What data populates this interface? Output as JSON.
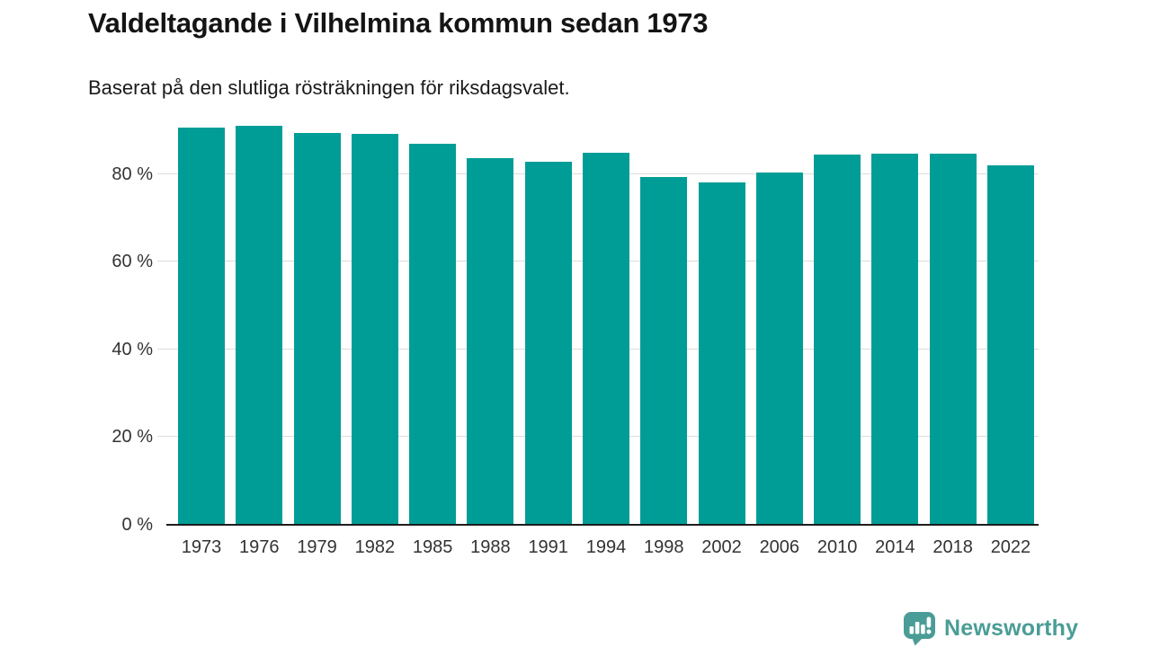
{
  "title": "Valdeltagande i Vilhelmina kommun sedan 1973",
  "subtitle": "Baserat på den slutliga rösträkningen för riksdagsvalet.",
  "branding": {
    "name": "Newsworthy",
    "icon": "newsworthy-speech-bubble-barchart-icon",
    "color": "#4a9d96"
  },
  "colors": {
    "bar": "#009d96",
    "gridline": "#dcdcdc",
    "axis_line": "#1d1d1d",
    "tick_label": "#333333",
    "title_text": "#141414"
  },
  "chart_data": {
    "type": "bar",
    "title": "Valdeltagande i Vilhelmina kommun sedan 1973",
    "subtitle": "Baserat på den slutliga rösträkningen för riksdagsvalet.",
    "categories": [
      "1973",
      "1976",
      "1979",
      "1982",
      "1985",
      "1988",
      "1991",
      "1994",
      "1998",
      "2002",
      "2006",
      "2010",
      "2014",
      "2018",
      "2022"
    ],
    "values": [
      90.5,
      91.0,
      89.3,
      89.1,
      86.9,
      83.5,
      82.7,
      84.9,
      79.3,
      78.1,
      80.4,
      84.4,
      84.6,
      84.6,
      81.9
    ],
    "unit": "%",
    "xlabel": "",
    "ylabel": "",
    "ylim": [
      0,
      92
    ],
    "yticks": [
      0,
      20,
      40,
      60,
      80
    ],
    "ytick_suffix": " %",
    "grid": "horizontal",
    "legend": "none",
    "bar_color": "#009d96"
  }
}
